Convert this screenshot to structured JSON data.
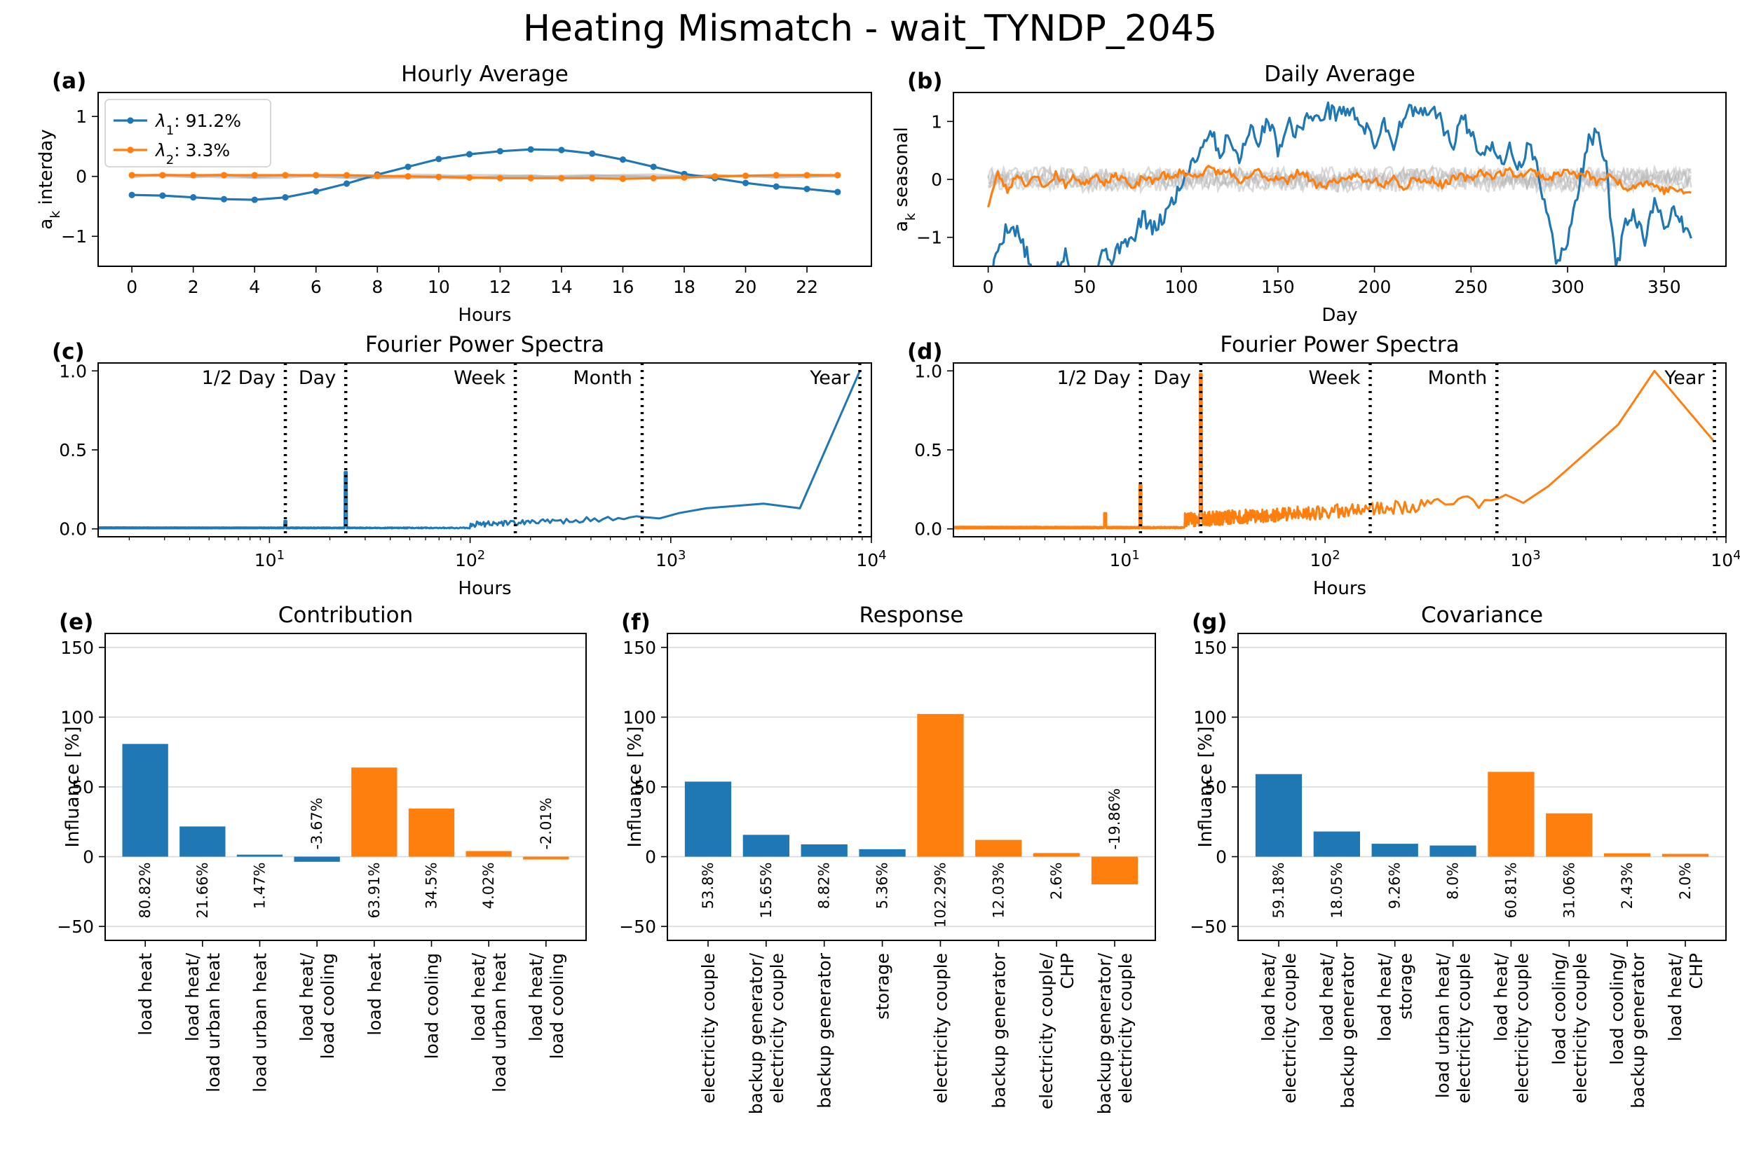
{
  "suptitle": "Heating Mismatch - wait_TYNDP_2045",
  "colors": {
    "pc1": "#1f77b4",
    "pc2": "#ff7f0e",
    "grey": "#b5b5b5",
    "grid": "#d9d9d9"
  },
  "chart_data": [
    {
      "id": "a",
      "panel_label": "(a)",
      "type": "line",
      "title": "Hourly Average",
      "xlabel": "Hours",
      "ylabel": "a_k interday",
      "xlim": [
        -1.1,
        24.1
      ],
      "ylim": [
        -1.5,
        1.4
      ],
      "xticks": [
        0,
        2,
        4,
        6,
        8,
        10,
        12,
        14,
        16,
        18,
        20,
        22
      ],
      "yticks": [
        -1,
        0,
        1
      ],
      "x": [
        0,
        1,
        2,
        3,
        4,
        5,
        6,
        7,
        8,
        9,
        10,
        11,
        12,
        13,
        14,
        15,
        16,
        17,
        18,
        19,
        20,
        21,
        22,
        23
      ],
      "series": [
        {
          "name": "λ1: 91.2%",
          "color": "#1f77b4",
          "values": [
            -0.31,
            -0.32,
            -0.35,
            -0.38,
            -0.39,
            -0.35,
            -0.25,
            -0.12,
            0.03,
            0.16,
            0.29,
            0.37,
            0.42,
            0.45,
            0.44,
            0.38,
            0.28,
            0.16,
            0.04,
            -0.03,
            -0.11,
            -0.17,
            -0.21,
            -0.26
          ]
        },
        {
          "name": "λ2: 3.3%",
          "color": "#ff7f0e",
          "values": [
            0.02,
            0.02,
            0.02,
            0.02,
            0.02,
            0.02,
            0.02,
            0.02,
            0.01,
            0.0,
            -0.01,
            -0.02,
            -0.03,
            -0.03,
            -0.03,
            -0.03,
            -0.04,
            -0.03,
            -0.02,
            0.0,
            0.01,
            0.02,
            0.02,
            0.02
          ]
        }
      ],
      "legend": {
        "placement": "upper-left",
        "entries": [
          {
            "symbol": "λ",
            "sub": "1",
            "text": ": 91.2%",
            "color": "#1f77b4"
          },
          {
            "symbol": "λ",
            "sub": "2",
            "text": ": 3.3%",
            "color": "#ff7f0e"
          }
        ]
      }
    },
    {
      "id": "b",
      "panel_label": "(b)",
      "type": "line",
      "title": "Daily Average",
      "xlabel": "Day",
      "ylabel": "a_k seasonal",
      "xlim": [
        -18,
        382
      ],
      "ylim": [
        -1.5,
        1.5
      ],
      "xticks": [
        0,
        50,
        100,
        150,
        200,
        250,
        300,
        350
      ],
      "yticks": [
        -1,
        0,
        1
      ],
      "series_anchors": {
        "pc1": [
          [
            0,
            -1.9
          ],
          [
            5,
            -1.2
          ],
          [
            10,
            -0.8
          ],
          [
            15,
            -0.9
          ],
          [
            20,
            -1.3
          ],
          [
            25,
            -1.9
          ],
          [
            30,
            -1.8
          ],
          [
            35,
            -1.6
          ],
          [
            40,
            -1.3
          ],
          [
            45,
            -1.8
          ],
          [
            50,
            -1.5
          ],
          [
            55,
            -1.6
          ],
          [
            60,
            -1.2
          ],
          [
            65,
            -1.4
          ],
          [
            70,
            -1.0
          ],
          [
            75,
            -1.1
          ],
          [
            80,
            -0.6
          ],
          [
            85,
            -0.9
          ],
          [
            90,
            -0.7
          ],
          [
            95,
            -0.4
          ],
          [
            100,
            -0.1
          ],
          [
            105,
            0.3
          ],
          [
            110,
            0.5
          ],
          [
            115,
            0.9
          ],
          [
            120,
            0.4
          ],
          [
            125,
            0.8
          ],
          [
            130,
            0.3
          ],
          [
            135,
            0.9
          ],
          [
            140,
            0.6
          ],
          [
            145,
            1.1
          ],
          [
            150,
            0.5
          ],
          [
            155,
            1.0
          ],
          [
            160,
            0.8
          ],
          [
            165,
            1.1
          ],
          [
            170,
            1.0
          ],
          [
            175,
            1.2
          ],
          [
            180,
            1.15
          ],
          [
            185,
            1.2
          ],
          [
            190,
            1.1
          ],
          [
            195,
            0.9
          ],
          [
            200,
            0.6
          ],
          [
            205,
            1.0
          ],
          [
            210,
            0.6
          ],
          [
            215,
            1.1
          ],
          [
            220,
            1.2
          ],
          [
            225,
            1.1
          ],
          [
            230,
            1.2
          ],
          [
            235,
            1.0
          ],
          [
            240,
            0.5
          ],
          [
            245,
            1.1
          ],
          [
            250,
            0.8
          ],
          [
            255,
            0.5
          ],
          [
            260,
            0.6
          ],
          [
            265,
            0.3
          ],
          [
            270,
            0.5
          ],
          [
            275,
            0.2
          ],
          [
            280,
            0.6
          ],
          [
            285,
            0.1
          ],
          [
            290,
            -0.7
          ],
          [
            295,
            -1.5
          ],
          [
            300,
            -1.0
          ],
          [
            305,
            -0.3
          ],
          [
            310,
            0.6
          ],
          [
            315,
            0.8
          ],
          [
            320,
            0.2
          ],
          [
            325,
            -1.6
          ],
          [
            330,
            -0.8
          ],
          [
            335,
            -0.6
          ],
          [
            340,
            -1.1
          ],
          [
            345,
            -0.4
          ],
          [
            350,
            -0.8
          ],
          [
            355,
            -0.5
          ],
          [
            360,
            -0.8
          ],
          [
            364,
            -1.0
          ]
        ],
        "pc2": [
          [
            0,
            -0.45
          ],
          [
            5,
            0.1
          ],
          [
            10,
            -0.2
          ],
          [
            15,
            0.1
          ],
          [
            20,
            -0.1
          ],
          [
            25,
            0.05
          ],
          [
            30,
            -0.15
          ],
          [
            35,
            0.1
          ],
          [
            40,
            -0.1
          ],
          [
            45,
            0.05
          ],
          [
            50,
            -0.1
          ],
          [
            55,
            0.1
          ],
          [
            60,
            -0.05
          ],
          [
            65,
            0.05
          ],
          [
            70,
            0.05
          ],
          [
            75,
            -0.2
          ],
          [
            80,
            0.05
          ],
          [
            85,
            -0.05
          ],
          [
            90,
            0.1
          ],
          [
            95,
            0.0
          ],
          [
            100,
            0.15
          ],
          [
            105,
            0.05
          ],
          [
            110,
            0.1
          ],
          [
            115,
            0.2
          ],
          [
            120,
            0.1
          ],
          [
            125,
            0.15
          ],
          [
            130,
            -0.1
          ],
          [
            135,
            0.05
          ],
          [
            140,
            0.15
          ],
          [
            145,
            0.0
          ],
          [
            150,
            0.05
          ],
          [
            155,
            -0.05
          ],
          [
            160,
            0.15
          ],
          [
            165,
            0.05
          ],
          [
            170,
            -0.1
          ],
          [
            175,
            -0.1
          ],
          [
            180,
            0.0
          ],
          [
            185,
            -0.05
          ],
          [
            190,
            0.1
          ],
          [
            195,
            -0.05
          ],
          [
            200,
            0.0
          ],
          [
            205,
            -0.1
          ],
          [
            210,
            0.1
          ],
          [
            215,
            -0.2
          ],
          [
            220,
            0.05
          ],
          [
            225,
            -0.05
          ],
          [
            230,
            0.0
          ],
          [
            235,
            -0.1
          ],
          [
            240,
            0.0
          ],
          [
            245,
            0.05
          ],
          [
            250,
            0.0
          ],
          [
            255,
            0.15
          ],
          [
            260,
            0.05
          ],
          [
            265,
            0.1
          ],
          [
            270,
            0.15
          ],
          [
            275,
            0.05
          ],
          [
            280,
            0.15
          ],
          [
            285,
            0.1
          ],
          [
            290,
            0.0
          ],
          [
            295,
            0.1
          ],
          [
            300,
            0.15
          ],
          [
            305,
            0.05
          ],
          [
            310,
            0.1
          ],
          [
            315,
            -0.05
          ],
          [
            320,
            0.05
          ],
          [
            325,
            0.0
          ],
          [
            330,
            -0.15
          ],
          [
            335,
            -0.1
          ],
          [
            340,
            -0.05
          ],
          [
            345,
            -0.1
          ],
          [
            350,
            -0.2
          ],
          [
            355,
            -0.15
          ],
          [
            360,
            -0.25
          ],
          [
            364,
            -0.2
          ]
        ]
      },
      "grey_series_count": 5
    },
    {
      "id": "c",
      "panel_label": "(c)",
      "type": "line",
      "title": "Fourier Power Spectra",
      "xlabel": "Hours",
      "xscale": "log",
      "xlim": [
        1.4,
        10000
      ],
      "ylim": [
        -0.05,
        1.05
      ],
      "yticks": [
        0.0,
        0.5,
        1.0
      ],
      "xticks": [
        10,
        100,
        1000,
        10000
      ],
      "xtick_labels": [
        {
          "base": "10",
          "exp": "1"
        },
        {
          "base": "10",
          "exp": "2"
        },
        {
          "base": "10",
          "exp": "3"
        },
        {
          "base": "10",
          "exp": "4"
        }
      ],
      "color": "#1f77b4",
      "markers": [
        {
          "label": "1/2 Day",
          "x": 12
        },
        {
          "label": "Day",
          "x": 24
        },
        {
          "label": "Week",
          "x": 168
        },
        {
          "label": "Month",
          "x": 720
        },
        {
          "label": "Year",
          "x": 8760
        }
      ],
      "peaks": [
        [
          12,
          0.05
        ],
        [
          24,
          0.36
        ],
        [
          470,
          0.17
        ],
        [
          1100,
          0.1
        ],
        [
          1500,
          0.13
        ],
        [
          2900,
          0.16
        ],
        [
          4400,
          0.13
        ],
        [
          8760,
          1.0
        ]
      ]
    },
    {
      "id": "d",
      "panel_label": "(d)",
      "type": "line",
      "title": "Fourier Power Spectra",
      "xlabel": "Hours",
      "xscale": "log",
      "xlim": [
        1.4,
        10000
      ],
      "ylim": [
        -0.05,
        1.05
      ],
      "yticks": [
        0.0,
        0.5,
        1.0
      ],
      "xticks": [
        10,
        100,
        1000,
        10000
      ],
      "xtick_labels": [
        {
          "base": "10",
          "exp": "1"
        },
        {
          "base": "10",
          "exp": "2"
        },
        {
          "base": "10",
          "exp": "3"
        },
        {
          "base": "10",
          "exp": "4"
        }
      ],
      "color": "#ff7f0e",
      "markers": [
        {
          "label": "1/2 Day",
          "x": 12
        },
        {
          "label": "Day",
          "x": 24
        },
        {
          "label": "Week",
          "x": 168
        },
        {
          "label": "Month",
          "x": 720
        },
        {
          "label": "Year",
          "x": 8760
        }
      ],
      "peaks": [
        [
          8,
          0.1
        ],
        [
          12,
          0.28
        ],
        [
          24,
          0.98
        ],
        [
          470,
          0.3
        ],
        [
          780,
          0.22
        ],
        [
          1300,
          0.27
        ],
        [
          2900,
          0.66
        ],
        [
          4400,
          1.0
        ],
        [
          8760,
          0.55
        ]
      ]
    },
    {
      "id": "e",
      "panel_label": "(e)",
      "type": "bar",
      "title": "Contribution",
      "ylabel": "Influance [%]",
      "ylim": [
        -60,
        160
      ],
      "yticks": [
        -50,
        0,
        50,
        100,
        150
      ],
      "categories": [
        [
          "load heat"
        ],
        [
          "load heat/",
          "load urban heat"
        ],
        [
          "load urban heat"
        ],
        [
          "load heat/",
          "load cooling"
        ],
        [
          "load heat"
        ],
        [
          "load cooling"
        ],
        [
          "load heat/",
          "load urban heat"
        ],
        [
          "load heat/",
          "load cooling"
        ]
      ],
      "values": [
        80.82,
        21.66,
        1.47,
        -3.67,
        63.91,
        34.5,
        4.02,
        -2.01
      ],
      "value_labels": [
        "80.82%",
        "21.66%",
        "1.47%",
        "-3.67%",
        "63.91%",
        "34.5%",
        "4.02%",
        "-2.01%"
      ],
      "bar_colors": [
        "#1f77b4",
        "#1f77b4",
        "#1f77b4",
        "#1f77b4",
        "#ff7f0e",
        "#ff7f0e",
        "#ff7f0e",
        "#ff7f0e"
      ]
    },
    {
      "id": "f",
      "panel_label": "(f)",
      "type": "bar",
      "title": "Response",
      "ylabel": "Influance [%]",
      "ylim": [
        -60,
        160
      ],
      "yticks": [
        -50,
        0,
        50,
        100,
        150
      ],
      "categories": [
        [
          "electricity couple"
        ],
        [
          "backup generator/",
          "electricity couple"
        ],
        [
          "backup generator"
        ],
        [
          "storage"
        ],
        [
          "electricity couple"
        ],
        [
          "backup generator"
        ],
        [
          "electricity couple/",
          "CHP"
        ],
        [
          "backup generator/",
          "electricity couple"
        ]
      ],
      "values": [
        53.8,
        15.65,
        8.82,
        5.36,
        102.29,
        12.03,
        2.6,
        -19.86
      ],
      "value_labels": [
        "53.8%",
        "15.65%",
        "8.82%",
        "5.36%",
        "102.29%",
        "12.03%",
        "2.6%",
        "-19.86%"
      ],
      "bar_colors": [
        "#1f77b4",
        "#1f77b4",
        "#1f77b4",
        "#1f77b4",
        "#ff7f0e",
        "#ff7f0e",
        "#ff7f0e",
        "#ff7f0e"
      ]
    },
    {
      "id": "g",
      "panel_label": "(g)",
      "type": "bar",
      "title": "Covariance",
      "ylabel": "Influance [%]",
      "ylim": [
        -60,
        160
      ],
      "yticks": [
        -50,
        0,
        50,
        100,
        150
      ],
      "categories": [
        [
          "load heat/",
          "electricity couple"
        ],
        [
          "load heat/",
          "backup generator"
        ],
        [
          "load heat/",
          "storage"
        ],
        [
          "load urban heat/",
          "electricity couple"
        ],
        [
          "load heat/",
          "electricity couple"
        ],
        [
          "load cooling/",
          "electricity couple"
        ],
        [
          "load cooling/",
          "backup generator"
        ],
        [
          "load heat/",
          "CHP"
        ]
      ],
      "values": [
        59.18,
        18.05,
        9.26,
        8.0,
        60.81,
        31.06,
        2.43,
        2.0
      ],
      "value_labels": [
        "59.18%",
        "18.05%",
        "9.26%",
        "8.0%",
        "60.81%",
        "31.06%",
        "2.43%",
        "2.0%"
      ],
      "bar_colors": [
        "#1f77b4",
        "#1f77b4",
        "#1f77b4",
        "#1f77b4",
        "#ff7f0e",
        "#ff7f0e",
        "#ff7f0e",
        "#ff7f0e"
      ]
    }
  ]
}
